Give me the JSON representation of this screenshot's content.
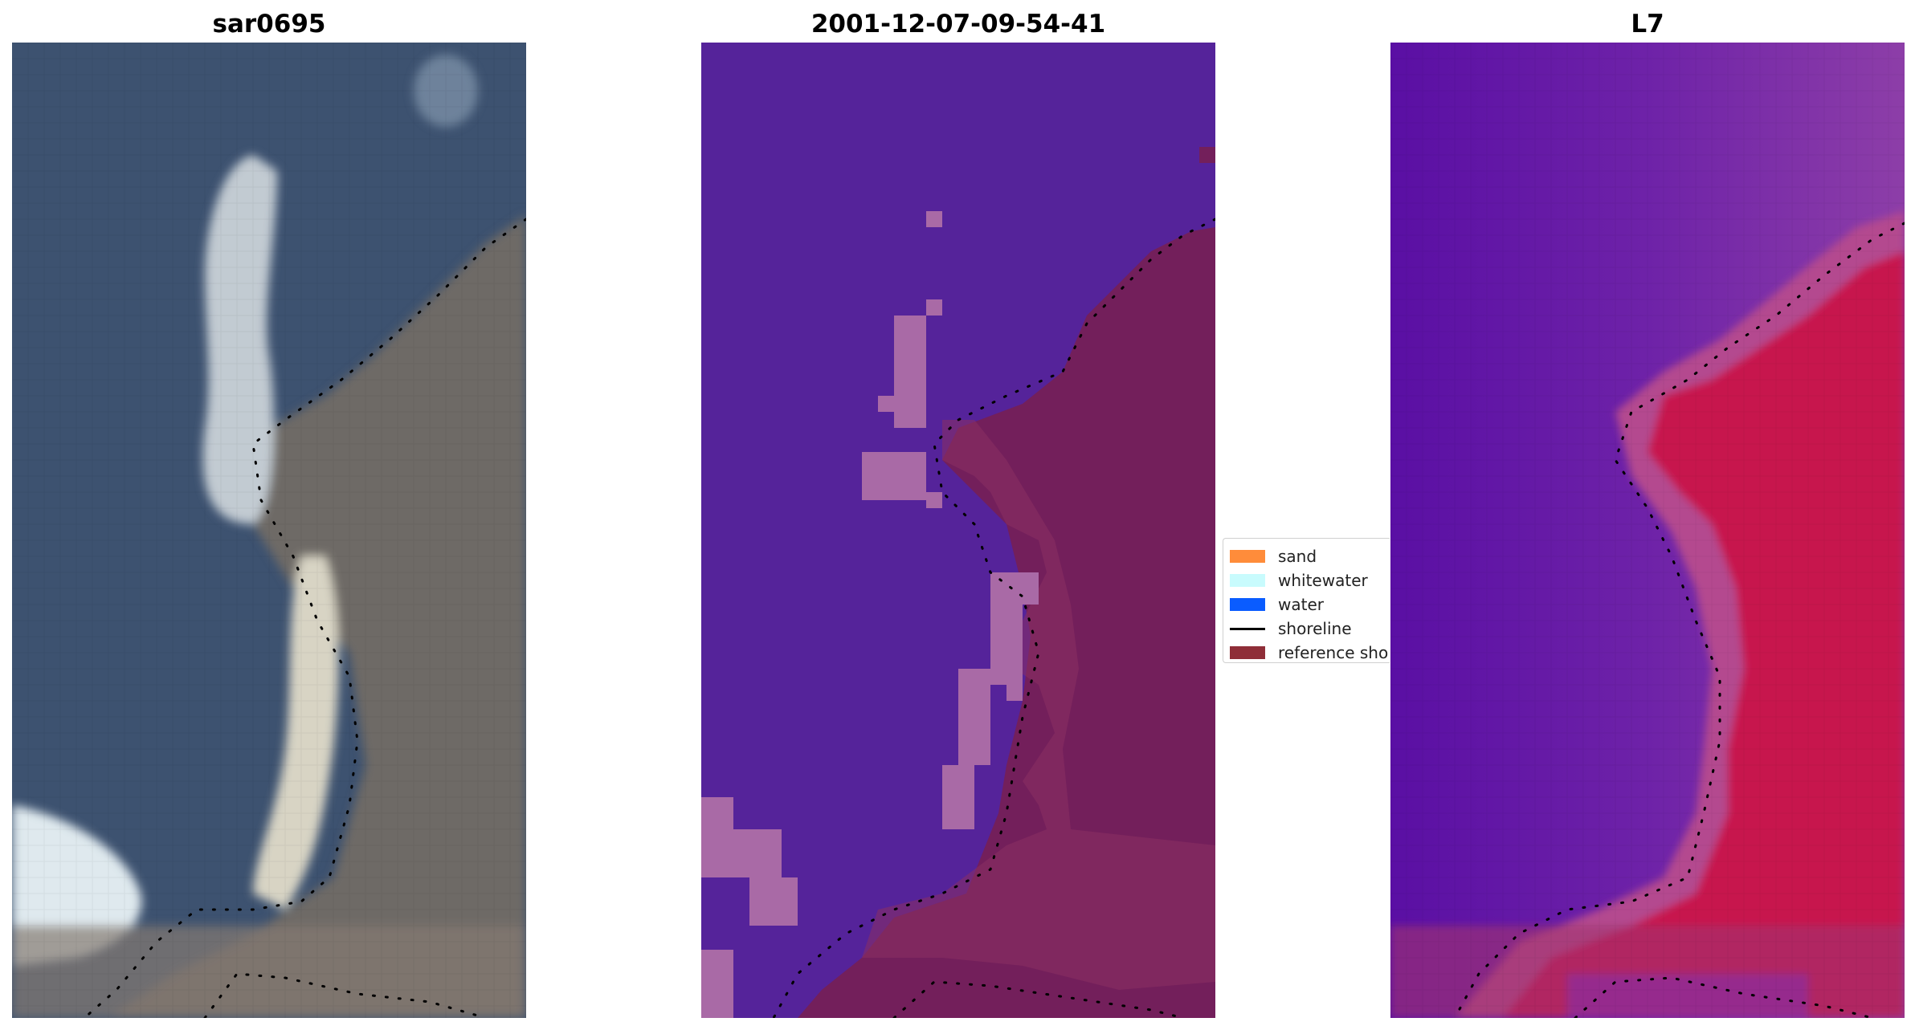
{
  "panels": [
    {
      "title": "sar0695",
      "kind": "rgb-satellite-image"
    },
    {
      "title": "2001-12-07-09-54-41",
      "kind": "classified-image"
    },
    {
      "title": "L7",
      "kind": "water-index-image"
    }
  ],
  "legend": {
    "items": [
      {
        "label": "sand",
        "color": "#ff8c3a",
        "kind": "patch"
      },
      {
        "label": "whitewater",
        "color": "#c8fbfd",
        "kind": "patch"
      },
      {
        "label": "water",
        "color": "#0a5cff",
        "kind": "patch"
      },
      {
        "label": "shoreline",
        "color": "#000000",
        "kind": "line"
      },
      {
        "label": "reference shoreline",
        "color": "#8f2e38",
        "kind": "patch"
      }
    ]
  },
  "colors": {
    "ocean": "#3d5270",
    "land": "#6e6e6e",
    "sand_bright": "#e6e2cf",
    "class_background": "#55239a",
    "class_sand": "#a96aa6",
    "class_land": "#731f5b",
    "index_low": "#5a0fa4",
    "index_high": "#c5103c",
    "shoreline_dots": "#000000"
  }
}
